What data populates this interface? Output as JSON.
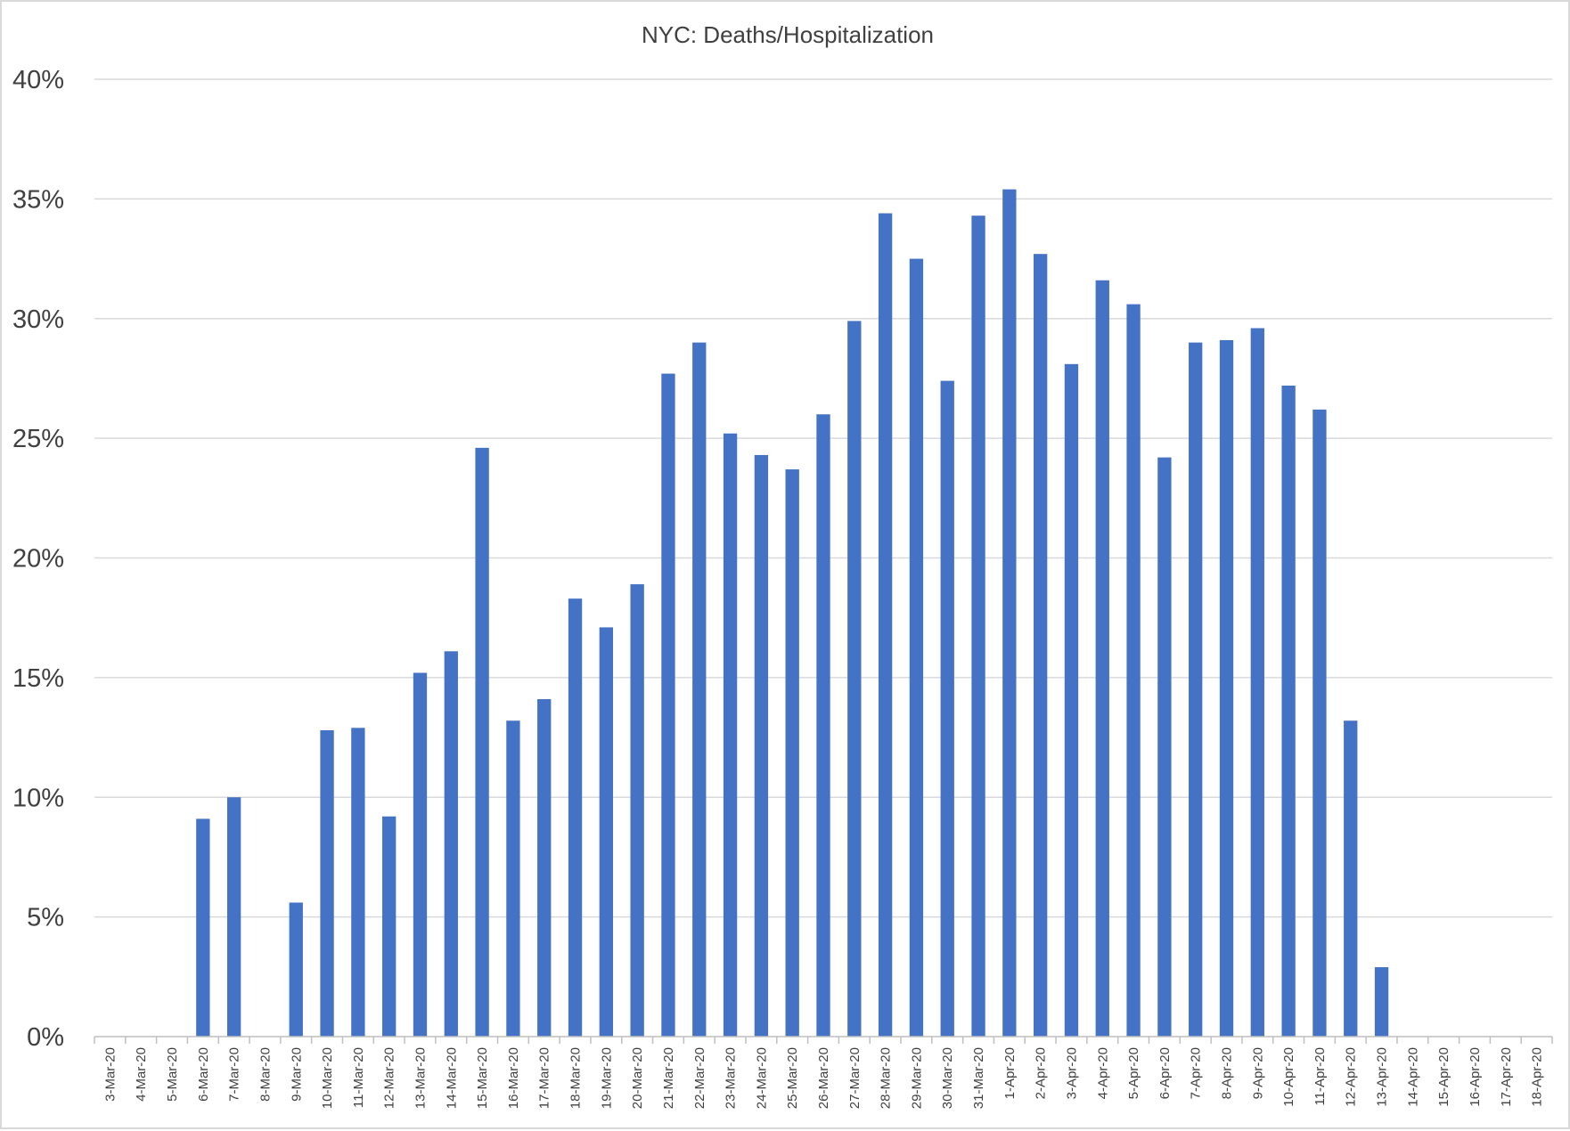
{
  "chart_data": {
    "type": "bar",
    "title": "NYC: Deaths/Hospitalization",
    "xlabel": "",
    "ylabel": "",
    "ylim": [
      0,
      40
    ],
    "y_ticks": [
      0,
      5,
      10,
      15,
      20,
      25,
      30,
      35,
      40
    ],
    "y_tick_labels": [
      "0%",
      "5%",
      "10%",
      "15%",
      "20%",
      "25%",
      "30%",
      "35%",
      "40%"
    ],
    "y_unit": "%",
    "grid": true,
    "legend": "none",
    "bar_color": "#4472C4",
    "categories": [
      "3-Mar-20",
      "4-Mar-20",
      "5-Mar-20",
      "6-Mar-20",
      "7-Mar-20",
      "8-Mar-20",
      "9-Mar-20",
      "10-Mar-20",
      "11-Mar-20",
      "12-Mar-20",
      "13-Mar-20",
      "14-Mar-20",
      "15-Mar-20",
      "16-Mar-20",
      "17-Mar-20",
      "18-Mar-20",
      "19-Mar-20",
      "20-Mar-20",
      "21-Mar-20",
      "22-Mar-20",
      "23-Mar-20",
      "24-Mar-20",
      "25-Mar-20",
      "26-Mar-20",
      "27-Mar-20",
      "28-Mar-20",
      "29-Mar-20",
      "30-Mar-20",
      "31-Mar-20",
      "1-Apr-20",
      "2-Apr-20",
      "3-Apr-20",
      "4-Apr-20",
      "5-Apr-20",
      "6-Apr-20",
      "7-Apr-20",
      "8-Apr-20",
      "9-Apr-20",
      "10-Apr-20",
      "11-Apr-20",
      "12-Apr-20",
      "13-Apr-20",
      "14-Apr-20",
      "15-Apr-20",
      "16-Apr-20",
      "17-Apr-20",
      "18-Apr-20"
    ],
    "values": [
      0,
      0,
      0,
      9.1,
      10.0,
      0,
      5.6,
      12.8,
      12.9,
      9.2,
      15.2,
      16.1,
      24.6,
      13.2,
      14.1,
      18.3,
      17.1,
      18.9,
      27.7,
      29.0,
      25.2,
      24.3,
      23.7,
      26.0,
      29.9,
      34.4,
      32.5,
      27.4,
      34.3,
      35.4,
      32.7,
      28.1,
      31.6,
      30.6,
      24.2,
      29.0,
      29.1,
      29.6,
      27.2,
      26.2,
      13.2,
      2.9,
      0,
      0,
      0,
      0,
      0
    ]
  }
}
